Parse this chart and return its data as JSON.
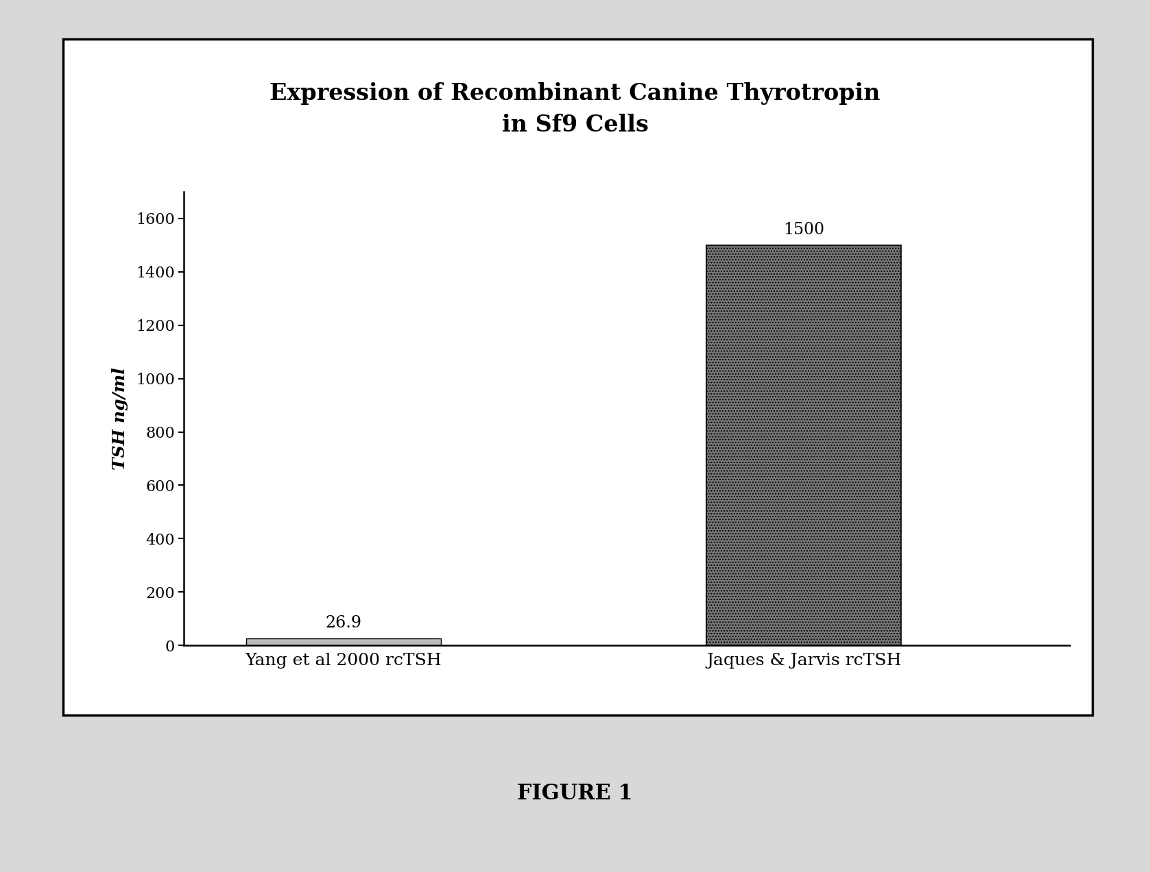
{
  "title_line1": "Expression of Recombinant Canine Thyrotropin",
  "title_line2": "in Sf9 Cells",
  "categories": [
    "Yang et al 2000 rcTSH",
    "Jaques & Jarvis rcTSH"
  ],
  "values": [
    26.9,
    1500
  ],
  "bar_labels": [
    "26.9",
    "1500"
  ],
  "ylabel": "TSH ng/ml",
  "ylim": [
    0,
    1700
  ],
  "yticks": [
    0,
    200,
    400,
    600,
    800,
    1000,
    1200,
    1400,
    1600
  ],
  "bar1_color": "#bbbbbb",
  "figure_label": "FIGURE 1",
  "outer_bg": "#d8d8d8",
  "box_bg": "#ffffff",
  "title_fontsize": 24,
  "label_fontsize": 18,
  "tick_fontsize": 16,
  "value_fontsize": 17,
  "figure_label_fontsize": 22
}
